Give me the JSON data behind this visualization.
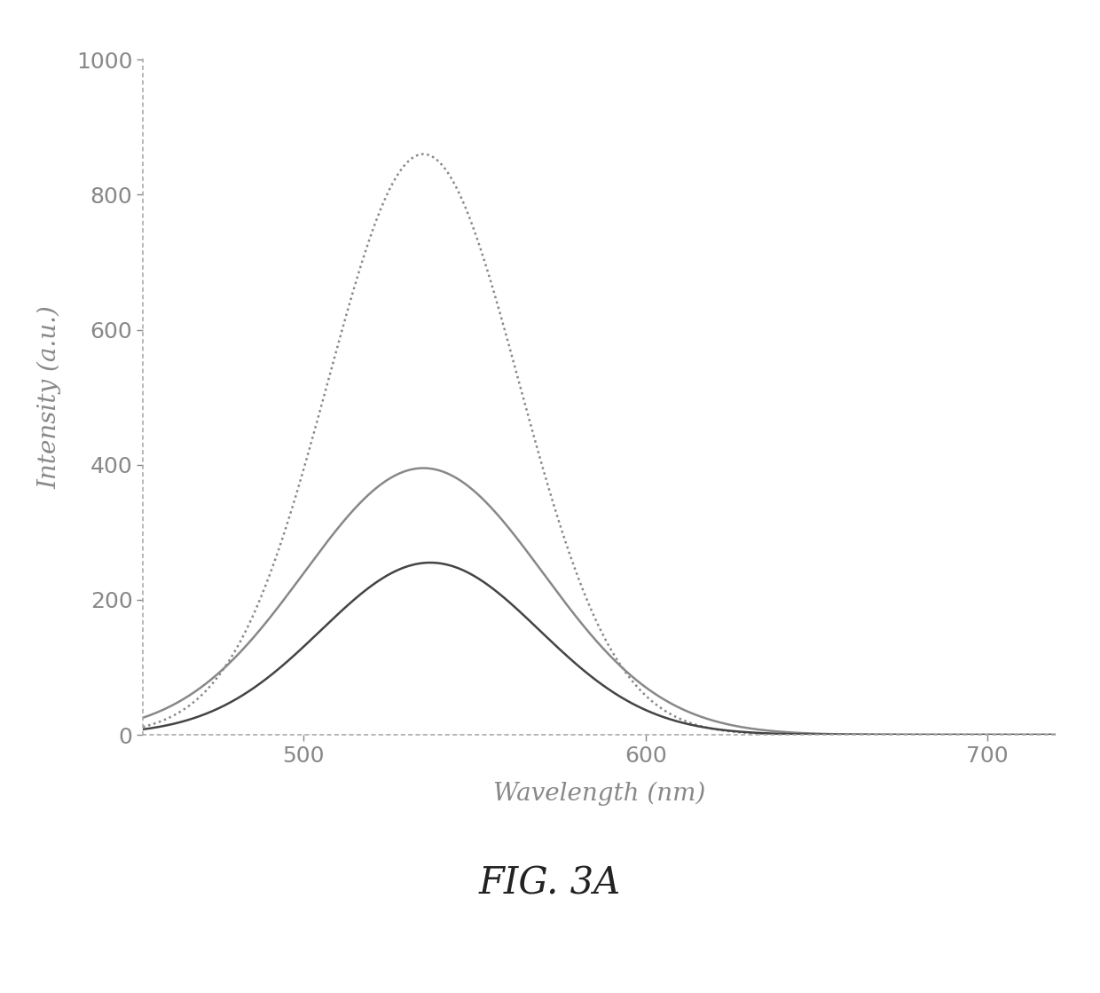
{
  "title": "FIG. 3A",
  "xlabel": "Wavelength (nm)",
  "ylabel": "Intensity (a.u.)",
  "xlim": [
    453,
    720
  ],
  "ylim": [
    0,
    1000
  ],
  "xticks": [
    500,
    600,
    700
  ],
  "yticks": [
    0,
    200,
    400,
    600,
    800,
    1000
  ],
  "curves": [
    {
      "peak_x": 535,
      "peak_y": 860,
      "sigma": 28,
      "color": "#888888",
      "linewidth": 1.8,
      "linestyle": "dotted"
    },
    {
      "peak_x": 535,
      "peak_y": 395,
      "sigma": 35,
      "color": "#888888",
      "linewidth": 1.8,
      "linestyle": "solid"
    },
    {
      "peak_x": 537,
      "peak_y": 255,
      "sigma": 32,
      "color": "#444444",
      "linewidth": 1.8,
      "linestyle": "solid"
    }
  ],
  "background_color": "#ffffff",
  "spine_color": "#aaaaaa",
  "tick_color": "#888888",
  "label_color": "#888888",
  "label_fontsize": 20,
  "tick_fontsize": 18,
  "title_fontsize": 30
}
